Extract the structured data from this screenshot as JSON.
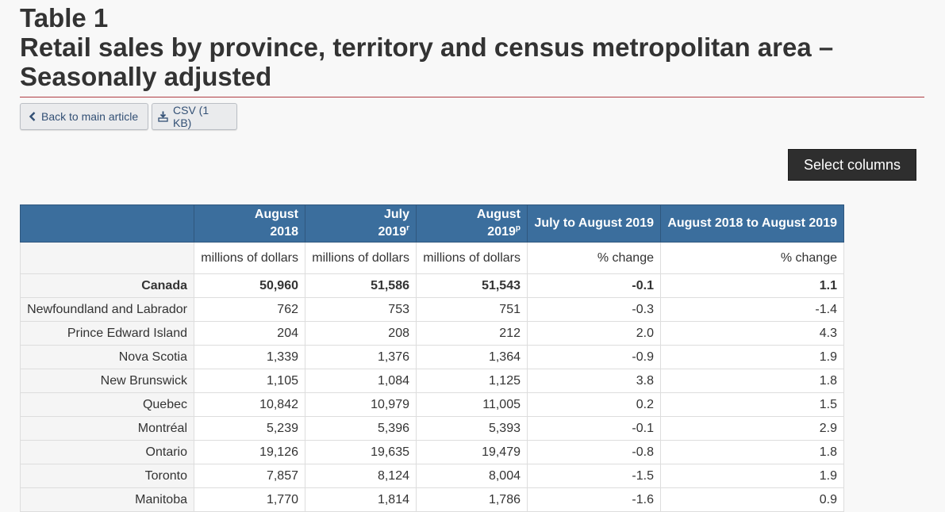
{
  "page": {
    "title_line1": "Table 1",
    "title_line2": "Retail sales by province, territory and census metropolitan area –",
    "title_line3": "Seasonally adjusted"
  },
  "buttons": {
    "back_label": "Back to main article",
    "csv_label": "CSV (1 KB)",
    "select_columns_label": "Select columns"
  },
  "table": {
    "headers": [
      {
        "line1": "",
        "line2": "",
        "sup": ""
      },
      {
        "line1": "August",
        "line2": "2018",
        "sup": ""
      },
      {
        "line1": "July",
        "line2": "2019",
        "sup": "r"
      },
      {
        "line1": "August",
        "line2": "2019",
        "sup": "p"
      },
      {
        "line1": "July to August 2019",
        "line2": "",
        "sup": ""
      },
      {
        "line1": "August 2018 to August 2019",
        "line2": "",
        "sup": ""
      }
    ],
    "units": [
      "",
      "millions of dollars",
      "millions of dollars",
      "millions of dollars",
      "% change",
      "% change"
    ],
    "rows": [
      {
        "name": "Canada",
        "values": [
          "50,960",
          "51,586",
          "51,543",
          "-0.1",
          "1.1"
        ]
      },
      {
        "name": "Newfoundland and Labrador",
        "values": [
          "762",
          "753",
          "751",
          "-0.3",
          "-1.4"
        ]
      },
      {
        "name": "Prince Edward Island",
        "values": [
          "204",
          "208",
          "212",
          "2.0",
          "4.3"
        ]
      },
      {
        "name": "Nova Scotia",
        "values": [
          "1,339",
          "1,376",
          "1,364",
          "-0.9",
          "1.9"
        ]
      },
      {
        "name": "New Brunswick",
        "values": [
          "1,105",
          "1,084",
          "1,125",
          "3.8",
          "1.8"
        ]
      },
      {
        "name": "Quebec",
        "values": [
          "10,842",
          "10,979",
          "11,005",
          "0.2",
          "1.5"
        ]
      },
      {
        "name": "Montréal",
        "values": [
          "5,239",
          "5,396",
          "5,393",
          "-0.1",
          "2.9"
        ]
      },
      {
        "name": "Ontario",
        "values": [
          "19,126",
          "19,635",
          "19,479",
          "-0.8",
          "1.8"
        ]
      },
      {
        "name": "Toronto",
        "values": [
          "7,857",
          "8,124",
          "8,004",
          "-1.5",
          "1.9"
        ]
      },
      {
        "name": "Manitoba",
        "values": [
          "1,770",
          "1,814",
          "1,786",
          "-1.6",
          "0.9"
        ]
      }
    ]
  },
  "colors": {
    "header_bg": "#3b6e9d",
    "rule": "#af3c43",
    "select_bg": "#2e2e2e"
  },
  "icons": {
    "back": "chevron-left-icon",
    "csv": "download-icon"
  }
}
